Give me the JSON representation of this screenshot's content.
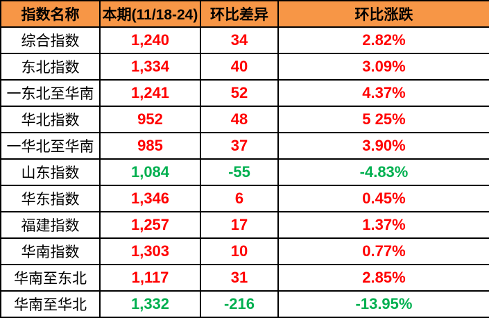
{
  "colors": {
    "header_bg": "#f79646",
    "up": "#ff0000",
    "down": "#00b050"
  },
  "headers": [
    "指数名称",
    "本期(11/18-24)",
    "环比差异",
    "环比涨跌"
  ],
  "rows": [
    {
      "name": "综合指数",
      "current": "1,240",
      "diff": "34",
      "pct": "2.82%",
      "trend": "up"
    },
    {
      "name": "东北指数",
      "current": "1,334",
      "diff": "40",
      "pct": "3.09%",
      "trend": "up"
    },
    {
      "name": "一东北至华南",
      "current": "1,241",
      "diff": "52",
      "pct": "4.37%",
      "trend": "up"
    },
    {
      "name": "华北指数",
      "current": "952",
      "diff": "48",
      "pct": "5 25%",
      "trend": "up"
    },
    {
      "name": "一华北至华南",
      "current": "985",
      "diff": "37",
      "pct": "3.90%",
      "trend": "up"
    },
    {
      "name": "山东指数",
      "current": "1,084",
      "diff": "-55",
      "pct": "-4.83%",
      "trend": "down"
    },
    {
      "name": "华东指数",
      "current": "1,346",
      "diff": "6",
      "pct": "0.45%",
      "trend": "up"
    },
    {
      "name": "福建指数",
      "current": "1,257",
      "diff": "17",
      "pct": "1.37%",
      "trend": "up"
    },
    {
      "name": "华南指数",
      "current": "1,303",
      "diff": "10",
      "pct": "0.77%",
      "trend": "up"
    },
    {
      "name": "华南至东北",
      "current": "1,117",
      "diff": "31",
      "pct": "2.85%",
      "trend": "up"
    },
    {
      "name": "华南至华北",
      "current": "1,332",
      "diff": "-216",
      "pct": "-13.95%",
      "trend": "down"
    }
  ]
}
